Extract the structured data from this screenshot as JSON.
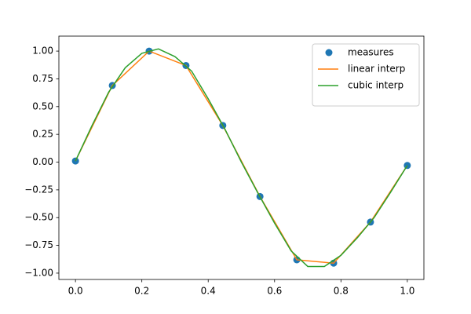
{
  "chart_data": {
    "type": "line",
    "series": [
      {
        "name": "measures",
        "color": "#1f77b4",
        "style": "marker",
        "x": [
          0,
          0.111,
          0.222,
          0.333,
          0.444,
          0.556,
          0.667,
          0.778,
          0.889,
          1.0
        ],
        "values": [
          0.01,
          0.69,
          1.0,
          0.87,
          0.33,
          -0.31,
          -0.88,
          -0.91,
          -0.54,
          -0.03
        ]
      },
      {
        "name": "linear interp",
        "color": "#ff7f0e",
        "style": "line",
        "x": [
          0,
          0.111,
          0.222,
          0.333,
          0.444,
          0.556,
          0.667,
          0.778,
          0.889,
          1.0
        ],
        "values": [
          0.01,
          0.69,
          1.0,
          0.87,
          0.33,
          -0.31,
          -0.88,
          -0.91,
          -0.54,
          -0.03
        ]
      },
      {
        "name": "cubic interp",
        "color": "#2ca02c",
        "style": "line",
        "x": [
          0,
          0.05,
          0.1,
          0.15,
          0.2,
          0.25,
          0.3,
          0.35,
          0.4,
          0.45,
          0.5,
          0.55,
          0.6,
          0.65,
          0.7,
          0.75,
          0.8,
          0.85,
          0.9,
          0.95,
          1.0
        ],
        "values": [
          0.01,
          0.33,
          0.63,
          0.85,
          0.98,
          1.02,
          0.95,
          0.82,
          0.57,
          0.3,
          0.0,
          -0.28,
          -0.55,
          -0.8,
          -0.94,
          -0.94,
          -0.84,
          -0.68,
          -0.5,
          -0.27,
          -0.03
        ]
      }
    ],
    "xlim": [
      -0.05,
      1.05
    ],
    "ylim": [
      -1.057,
      1.135
    ],
    "xticks": [
      {
        "value": 0,
        "label": "0.0"
      },
      {
        "value": 0.2,
        "label": "0.2"
      },
      {
        "value": 0.4,
        "label": "0.4"
      },
      {
        "value": 0.6,
        "label": "0.6"
      },
      {
        "value": 0.8,
        "label": "0.8"
      },
      {
        "value": 1,
        "label": "1.0"
      }
    ],
    "yticks": [
      {
        "value": -1,
        "label": "−1.00"
      },
      {
        "value": -0.75,
        "label": "−0.75"
      },
      {
        "value": -0.5,
        "label": "−0.50"
      },
      {
        "value": -0.25,
        "label": "−0.25"
      },
      {
        "value": 0,
        "label": "0.00"
      },
      {
        "value": 0.25,
        "label": "0.25"
      },
      {
        "value": 0.5,
        "label": "0.50"
      },
      {
        "value": 0.75,
        "label": "0.75"
      },
      {
        "value": 1,
        "label": "1.00"
      }
    ],
    "legend": "upper right",
    "grid": false
  }
}
